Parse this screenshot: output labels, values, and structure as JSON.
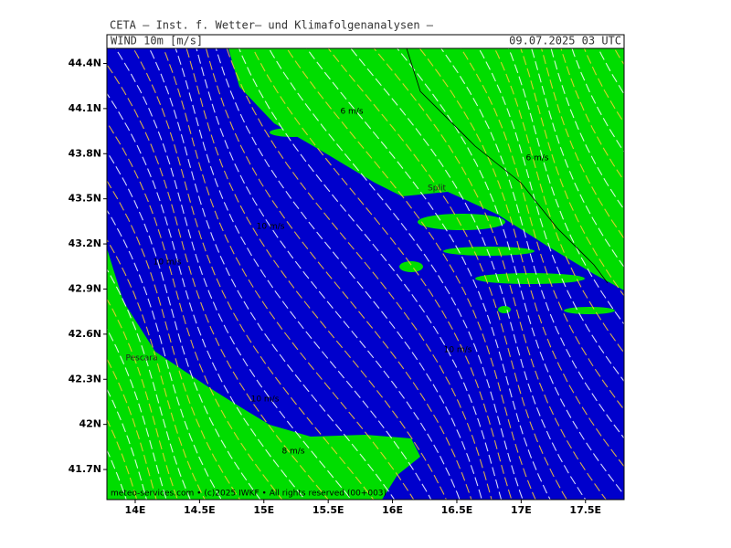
{
  "header": {
    "institute": "CETA — Inst. f. Wetter— und Klimafolgenanalysen —",
    "field": "WIND 10m [m/s]",
    "valid": "09.07.2025 03 UTC"
  },
  "map": {
    "lon_range": [
      13.78,
      17.8
    ],
    "lat_range": [
      41.5,
      44.5
    ],
    "lat_ticks": [
      {
        "value": 44.4,
        "label": "44.4N"
      },
      {
        "value": 44.1,
        "label": "44.1N"
      },
      {
        "value": 43.8,
        "label": "43.8N"
      },
      {
        "value": 43.5,
        "label": "43.5N"
      },
      {
        "value": 43.2,
        "label": "43.2N"
      },
      {
        "value": 42.9,
        "label": "42.9N"
      },
      {
        "value": 42.6,
        "label": "42.6N"
      },
      {
        "value": 42.3,
        "label": "42.3N"
      },
      {
        "value": 42,
        "label": "42N"
      },
      {
        "value": 41.7,
        "label": "41.7N"
      }
    ],
    "lon_ticks": [
      {
        "value": 14,
        "label": "14E"
      },
      {
        "value": 14.5,
        "label": "14.5E"
      },
      {
        "value": 15,
        "label": "15E"
      },
      {
        "value": 15.5,
        "label": "15.5E"
      },
      {
        "value": 16,
        "label": "16E"
      },
      {
        "value": 16.5,
        "label": "16.5E"
      },
      {
        "value": 17,
        "label": "17E"
      },
      {
        "value": 17.5,
        "label": "17.5E"
      }
    ],
    "contour_labels": [
      "6 m/s",
      "6 m/s",
      "10 m/s",
      "10 m/s",
      "10 m/s",
      "10 m/s",
      "8 m/s"
    ],
    "places": [
      "Split",
      "Pescara"
    ]
  },
  "footer": "meteo-services.com • (c)2025 IWKF • All rights reserved (00+003)"
}
